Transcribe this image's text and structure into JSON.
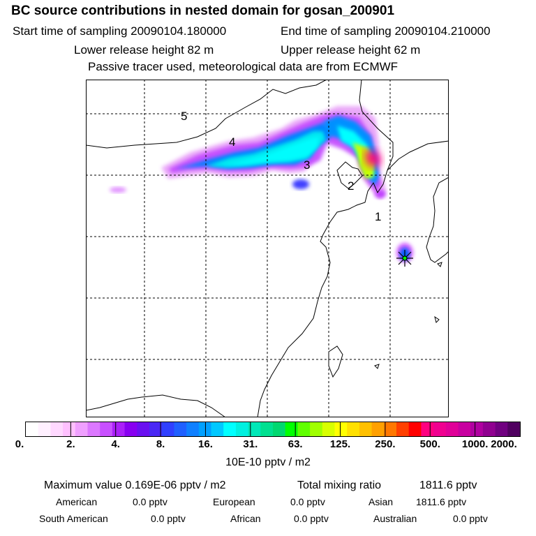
{
  "header": {
    "title": "BC  source contributions in nested domain for gosan_200901",
    "start": "Start time of sampling 20090104.180000",
    "end": "End time of sampling 20090104.210000",
    "lower": "Lower release height   82 m",
    "upper": "Upper release height   62 m",
    "note": "Passive tracer used, meteorological data are from ECMWF"
  },
  "map": {
    "labels": [
      {
        "text": "5"
      },
      {
        "text": "4"
      },
      {
        "text": "3"
      },
      {
        "text": "2"
      },
      {
        "text": "1"
      }
    ],
    "receptor_symbol": "star"
  },
  "colorbar": {
    "ticks": [
      "0.",
      "2.",
      "4.",
      "8.",
      "16.",
      "31.",
      "63.",
      "125.",
      "250.",
      "500.",
      "1000.",
      "2000."
    ],
    "unit": "10E-10 pptv / m2",
    "colors": [
      "#ffffff",
      "#fff0ff",
      "#ffd8ff",
      "#ffc0ff",
      "#f0a0ff",
      "#dc78ff",
      "#c850ff",
      "#aa20f8",
      "#8800f0",
      "#6a10f0",
      "#4a28f4",
      "#3040ff",
      "#2060ff",
      "#1080ff",
      "#00a0ff",
      "#00c8ff",
      "#00ffff",
      "#00f0e0",
      "#00e8b8",
      "#00e090",
      "#00d870",
      "#00ff00",
      "#60ff00",
      "#a0ff00",
      "#d8ff00",
      "#ffff00",
      "#ffe000",
      "#ffc000",
      "#ffa000",
      "#ff7800",
      "#ff4000",
      "#ff0000",
      "#ff0080",
      "#f00090",
      "#e00098",
      "#c800a0",
      "#b000a0",
      "#900090",
      "#700080",
      "#500060"
    ]
  },
  "stats": {
    "max": "Maximum value  0.169E-06 pptv / m2",
    "total_label": "Total mixing ratio",
    "total_value": "1811.6 pptv",
    "regions": [
      {
        "name": "American",
        "value": "0.0 pptv"
      },
      {
        "name": "European",
        "value": "0.0 pptv"
      },
      {
        "name": "Asian",
        "value": "1811.6 pptv"
      },
      {
        "name": "South American",
        "value": "0.0 pptv"
      },
      {
        "name": "African",
        "value": "0.0 pptv"
      },
      {
        "name": "Australian",
        "value": "0.0 pptv"
      }
    ]
  }
}
